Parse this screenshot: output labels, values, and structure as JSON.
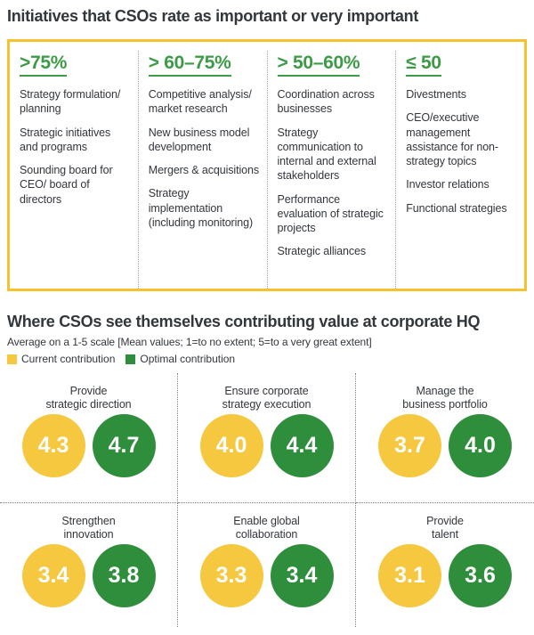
{
  "colors": {
    "box_border_yellow": "#F4C32F",
    "header_green": "#3D9A47",
    "current_yellow": "#F6C840",
    "optimal_green": "#2E8E3C",
    "text_dark": "#32373C"
  },
  "section1": {
    "title": "Initiatives that CSOs rate as important or very important",
    "columns": [
      {
        "header": ">75%",
        "items": [
          "Strategy formulation/ planning",
          "Strategic initiatives and programs",
          "Sounding board for CEO/ board of directors"
        ]
      },
      {
        "header": "> 60–75%",
        "items": [
          "Competitive analysis/ market research",
          "New business model development",
          "Mergers & acquisitions",
          "Strategy implementation (including monitoring)"
        ]
      },
      {
        "header": "> 50–60%",
        "items": [
          "Coordination across businesses",
          "Strategy communication to internal and external stakeholders",
          "Performance evaluation of strategic projects",
          "Strategic alliances"
        ]
      },
      {
        "header": "≤ 50",
        "items": [
          "Divestments",
          "CEO/executive management assistance for non-strategy topics",
          "Investor relations",
          "Functional strategies"
        ]
      }
    ]
  },
  "section2": {
    "title": "Where CSOs see themselves contributing value at corporate HQ",
    "subtitle": "Average on a 1-5 scale [Mean values; 1=to no extent; 5=to a very great extent]",
    "legend": [
      {
        "label": "Current contribution",
        "color": "#F6C840"
      },
      {
        "label": "Optimal contribution",
        "color": "#2E8E3C"
      }
    ],
    "cells": [
      {
        "label_line1": "Provide",
        "label_line2": "strategic direction",
        "current": "4.3",
        "optimal": "4.7"
      },
      {
        "label_line1": "Ensure corporate",
        "label_line2": "strategy execution",
        "current": "4.0",
        "optimal": "4.4"
      },
      {
        "label_line1": "Manage the",
        "label_line2": "business portfolio",
        "current": "3.7",
        "optimal": "4.0"
      },
      {
        "label_line1": "Strengthen",
        "label_line2": "innovation",
        "current": "3.4",
        "optimal": "3.8"
      },
      {
        "label_line1": "Enable global",
        "label_line2": "collaboration",
        "current": "3.3",
        "optimal": "3.4"
      },
      {
        "label_line1": "Provide",
        "label_line2": "talent",
        "current": "3.1",
        "optimal": "3.6"
      }
    ]
  },
  "chart_data": [
    {
      "type": "table",
      "title": "Initiatives that CSOs rate as important or very important",
      "columns": [
        ">75%",
        "> 60–75%",
        "> 50–60%",
        "≤ 50"
      ],
      "cells_by_column": [
        [
          "Strategy formulation/ planning",
          "Strategic initiatives and programs",
          "Sounding board for CEO/ board of directors"
        ],
        [
          "Competitive analysis/ market research",
          "New business model development",
          "Mergers & acquisitions",
          "Strategy implementation (including monitoring)"
        ],
        [
          "Coordination across businesses",
          "Strategy communication to internal and external stakeholders",
          "Performance evaluation of strategic projects",
          "Strategic alliances"
        ],
        [
          "Divestments",
          "CEO/executive management assistance for non-strategy topics",
          "Investor relations",
          "Functional strategies"
        ]
      ]
    },
    {
      "type": "bar",
      "title": "Where CSOs see themselves contributing value at corporate HQ",
      "subtitle": "Average on a 1-5 scale [Mean values; 1=to no extent; 5=to a very great extent]",
      "categories": [
        "Provide strategic direction",
        "Ensure corporate strategy execution",
        "Manage the business portfolio",
        "Strengthen innovation",
        "Enable global collaboration",
        "Provide talent"
      ],
      "series": [
        {
          "name": "Current contribution",
          "color": "#F6C840",
          "values": [
            4.3,
            4.0,
            3.7,
            3.4,
            3.3,
            3.1
          ]
        },
        {
          "name": "Optimal contribution",
          "color": "#2E8E3C",
          "values": [
            4.7,
            4.4,
            4.0,
            3.8,
            3.4,
            3.6
          ]
        }
      ],
      "value_range": [
        1,
        5
      ],
      "legend_position": "top-left",
      "grid": false
    }
  ]
}
